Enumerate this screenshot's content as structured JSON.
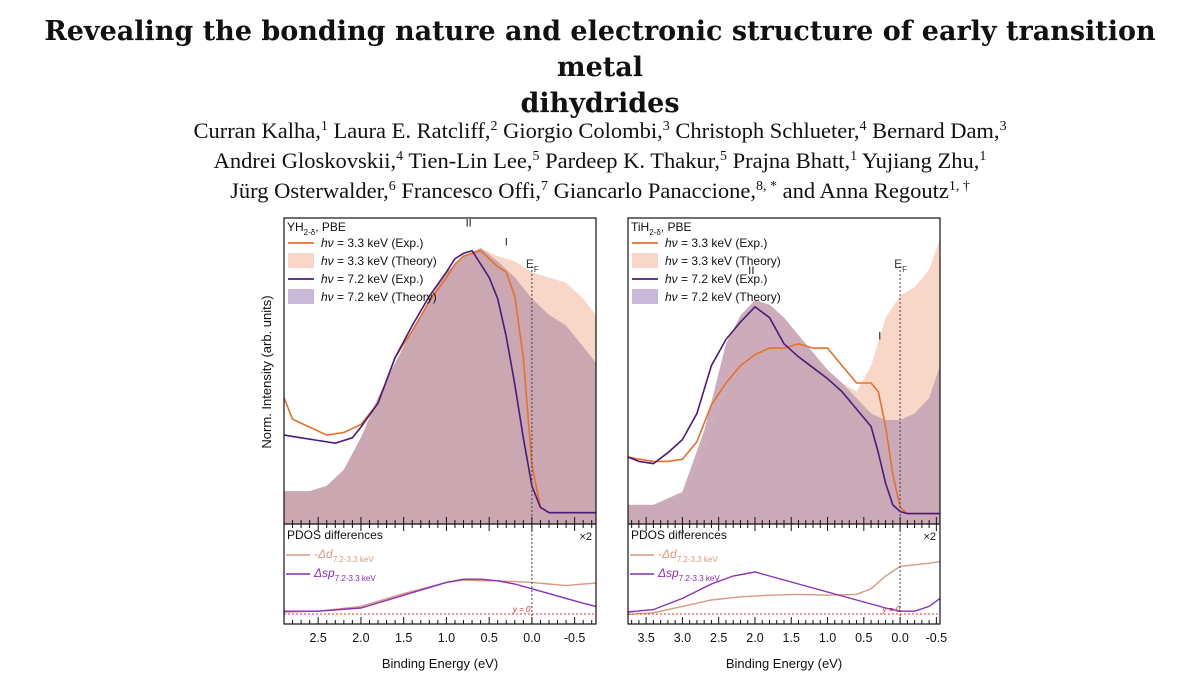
{
  "title": {
    "line1": "Revealing the bonding nature and electronic structure of early transition metal",
    "line2": "dihydrides"
  },
  "authors": [
    {
      "name": "Curran Kalha,",
      "aff": "1"
    },
    {
      "name": "Laura E. Ratcliff,",
      "aff": "2"
    },
    {
      "name": "Giorgio Colombi,",
      "aff": "3"
    },
    {
      "name": "Christoph Schlueter,",
      "aff": "4"
    },
    {
      "name": "Bernard Dam,",
      "aff": "3"
    },
    {
      "name": "Andrei Gloskovskii,",
      "aff": "4"
    },
    {
      "name": "Tien-Lin Lee,",
      "aff": "5"
    },
    {
      "name": "Pardeep K. Thakur,",
      "aff": "5"
    },
    {
      "name": "Prajna Bhatt,",
      "aff": "1"
    },
    {
      "name": "Yujiang Zhu,",
      "aff": "1"
    },
    {
      "name": "Jürg Osterwalder,",
      "aff": "6"
    },
    {
      "name": "Francesco Offi,",
      "aff": "7"
    },
    {
      "name": "Giancarlo Panaccione,",
      "aff": "8, *"
    },
    {
      "name": "and Anna Regoutz",
      "aff": "1, †"
    }
  ],
  "figure": {
    "ylabel": "Norm. Intensity (arb. units)",
    "xlabel": "Binding Energy (eV)",
    "ef_label": "E",
    "ef_sub": "F",
    "legend": [
      "hν = 3.3 keV (Exp.)",
      "hν = 3.3 keV (Theory)",
      "hν = 7.2 keV (Exp.)",
      "hν = 7.2 keV (Theory)"
    ],
    "pdos_title": "PDOS differences",
    "x2_label": "×2",
    "delta_d": "-Δd",
    "delta_sp": "Δsp",
    "delta_sub": "7.2-3.3 keV",
    "y0_label": "y = 0",
    "peak_I": "I",
    "peak_II": "II",
    "panels": [
      {
        "label": "YH",
        "sub": "2-δ",
        "suffix": ", PBE",
        "ticks": [
          "2.5",
          "2.0",
          "1.5",
          "1.0",
          "0.5",
          "0.0",
          "-0.5"
        ]
      },
      {
        "label": "TiH",
        "sub": "2-δ",
        "suffix": ", PBE",
        "ticks": [
          "3.5",
          "3.0",
          "2.5",
          "2.0",
          "1.5",
          "1.0",
          "0.5",
          "0.0",
          "-0.5"
        ]
      }
    ]
  },
  "colors": {
    "orange_exp": "#e8702a",
    "orange_theory": "#f8d6c8",
    "purple_exp": "#4b1b7a",
    "purple_theory": "#c9b8da",
    "overlap": "#c9a4ad",
    "d_line": "#d99a80",
    "sp_line": "#8a2fb8",
    "y0_line": "#e0352a"
  },
  "chart_data": [
    {
      "type": "line",
      "title": "YH2-δ, PBE",
      "xlabel": "Binding Energy (eV)",
      "ylabel": "Norm. Intensity (arb. units)",
      "xlim": [
        2.9,
        -0.75
      ],
      "ylim": [
        0,
        1.1
      ],
      "series": [
        {
          "name": "hν = 3.3 keV (Exp.)",
          "x": [
            2.9,
            2.8,
            2.6,
            2.4,
            2.2,
            2.0,
            1.8,
            1.6,
            1.4,
            1.2,
            1.0,
            0.9,
            0.8,
            0.7,
            0.6,
            0.5,
            0.4,
            0.3,
            0.2,
            0.1,
            0.0,
            -0.1,
            -0.2,
            -0.4,
            -0.6,
            -0.75
          ],
          "y": [
            0.45,
            0.37,
            0.34,
            0.31,
            0.32,
            0.35,
            0.43,
            0.6,
            0.7,
            0.81,
            0.9,
            0.95,
            0.98,
            0.99,
            1.0,
            0.97,
            0.94,
            0.92,
            0.83,
            0.6,
            0.2,
            0.04,
            0.02,
            0.02,
            0.02,
            0.02
          ]
        },
        {
          "name": "hν = 3.3 keV (Theory)",
          "x": [
            2.9,
            2.6,
            2.4,
            2.2,
            2.0,
            1.8,
            1.6,
            1.4,
            1.2,
            1.0,
            0.8,
            0.6,
            0.4,
            0.2,
            0.0,
            -0.2,
            -0.4,
            -0.6,
            -0.75
          ],
          "y": [
            0.1,
            0.1,
            0.12,
            0.18,
            0.3,
            0.45,
            0.58,
            0.7,
            0.82,
            0.92,
            0.98,
            1.01,
            0.98,
            0.96,
            0.92,
            0.9,
            0.88,
            0.82,
            0.76
          ]
        },
        {
          "name": "hν = 7.2 keV (Exp.)",
          "x": [
            2.9,
            2.7,
            2.5,
            2.3,
            2.1,
            2.0,
            1.8,
            1.6,
            1.4,
            1.2,
            1.0,
            0.9,
            0.8,
            0.7,
            0.6,
            0.5,
            0.4,
            0.3,
            0.2,
            0.1,
            0.0,
            -0.1,
            -0.2,
            -0.4,
            -0.6,
            -0.75
          ],
          "y": [
            0.31,
            0.3,
            0.29,
            0.28,
            0.3,
            0.34,
            0.43,
            0.6,
            0.72,
            0.83,
            0.92,
            0.97,
            0.99,
            1.0,
            0.95,
            0.9,
            0.82,
            0.68,
            0.5,
            0.3,
            0.12,
            0.04,
            0.02,
            0.02,
            0.02,
            0.02
          ]
        },
        {
          "name": "hν = 7.2 keV (Theory)",
          "x": [
            2.9,
            2.6,
            2.4,
            2.2,
            2.0,
            1.8,
            1.6,
            1.4,
            1.2,
            1.0,
            0.8,
            0.6,
            0.4,
            0.2,
            0.0,
            -0.2,
            -0.4,
            -0.6,
            -0.75
          ],
          "y": [
            0.1,
            0.1,
            0.12,
            0.18,
            0.3,
            0.45,
            0.58,
            0.7,
            0.82,
            0.92,
            0.98,
            1.01,
            0.96,
            0.9,
            0.82,
            0.76,
            0.72,
            0.64,
            0.58
          ]
        },
        {
          "name": "-Δd 7.2-3.3 keV",
          "panel": "pdos",
          "x": [
            2.9,
            2.5,
            2.0,
            1.5,
            1.0,
            0.8,
            0.6,
            0.4,
            0.2,
            0.0,
            -0.2,
            -0.4,
            -0.6,
            -0.75
          ],
          "y": [
            0.05,
            0.06,
            0.12,
            0.28,
            0.42,
            0.45,
            0.44,
            0.44,
            0.43,
            0.42,
            0.4,
            0.38,
            0.4,
            0.41
          ]
        },
        {
          "name": "Δsp 7.2-3.3 keV",
          "panel": "pdos",
          "x": [
            2.9,
            2.5,
            2.0,
            1.5,
            1.0,
            0.8,
            0.6,
            0.4,
            0.2,
            0.0,
            -0.2,
            -0.4,
            -0.6,
            -0.75
          ],
          "y": [
            0.06,
            0.06,
            0.1,
            0.26,
            0.42,
            0.46,
            0.46,
            0.44,
            0.4,
            0.34,
            0.28,
            0.22,
            0.16,
            0.12
          ]
        }
      ]
    },
    {
      "type": "line",
      "title": "TiH2-δ, PBE",
      "xlabel": "Binding Energy (eV)",
      "ylabel": "Norm. Intensity (arb. units)",
      "xlim": [
        3.75,
        -0.55
      ],
      "ylim": [
        0,
        1.35
      ],
      "series": [
        {
          "name": "hν = 3.3 keV (Exp.)",
          "x": [
            3.75,
            3.6,
            3.4,
            3.2,
            3.0,
            2.8,
            2.6,
            2.4,
            2.2,
            2.0,
            1.8,
            1.6,
            1.4,
            1.2,
            1.0,
            0.8,
            0.6,
            0.4,
            0.3,
            0.2,
            0.1,
            0.0,
            -0.1,
            -0.2,
            -0.4,
            -0.55
          ],
          "y": [
            0.28,
            0.27,
            0.26,
            0.26,
            0.27,
            0.35,
            0.52,
            0.62,
            0.7,
            0.75,
            0.78,
            0.78,
            0.8,
            0.78,
            0.78,
            0.7,
            0.62,
            0.62,
            0.58,
            0.42,
            0.2,
            0.05,
            0.02,
            0.02,
            0.02,
            0.02
          ]
        },
        {
          "name": "hν = 3.3 keV (Theory)",
          "x": [
            3.75,
            3.4,
            3.0,
            2.7,
            2.4,
            2.2,
            2.0,
            1.8,
            1.6,
            1.4,
            1.2,
            1.0,
            0.8,
            0.6,
            0.4,
            0.2,
            0.0,
            -0.2,
            -0.4,
            -0.55
          ],
          "y": [
            0.06,
            0.06,
            0.1,
            0.3,
            0.58,
            0.7,
            0.76,
            0.78,
            0.78,
            0.76,
            0.72,
            0.67,
            0.62,
            0.58,
            0.7,
            0.92,
            1.02,
            1.06,
            1.14,
            1.28
          ]
        },
        {
          "name": "hν = 7.2 keV (Exp.)",
          "x": [
            3.75,
            3.6,
            3.4,
            3.2,
            3.0,
            2.8,
            2.6,
            2.4,
            2.2,
            2.0,
            1.8,
            1.6,
            1.4,
            1.2,
            1.0,
            0.8,
            0.6,
            0.4,
            0.3,
            0.2,
            0.1,
            0.0,
            -0.1,
            -0.2,
            -0.4,
            -0.55
          ],
          "y": [
            0.28,
            0.26,
            0.25,
            0.3,
            0.36,
            0.48,
            0.7,
            0.82,
            0.9,
            0.97,
            0.92,
            0.8,
            0.74,
            0.69,
            0.64,
            0.58,
            0.5,
            0.42,
            0.3,
            0.16,
            0.06,
            0.03,
            0.02,
            0.02,
            0.02,
            0.02
          ]
        },
        {
          "name": "hν = 7.2 keV (Theory)",
          "x": [
            3.75,
            3.4,
            3.0,
            2.7,
            2.4,
            2.2,
            2.0,
            1.8,
            1.6,
            1.4,
            1.2,
            1.0,
            0.8,
            0.6,
            0.4,
            0.2,
            0.0,
            -0.2,
            -0.4,
            -0.55
          ],
          "y": [
            0.06,
            0.06,
            0.12,
            0.4,
            0.8,
            0.93,
            1.0,
            0.98,
            0.92,
            0.84,
            0.76,
            0.68,
            0.62,
            0.55,
            0.48,
            0.45,
            0.45,
            0.48,
            0.55,
            0.7
          ]
        },
        {
          "name": "-Δd 7.2-3.3 keV",
          "panel": "pdos",
          "x": [
            3.75,
            3.4,
            3.0,
            2.6,
            2.2,
            1.8,
            1.4,
            1.0,
            0.6,
            0.4,
            0.2,
            0.0,
            -0.2,
            -0.4,
            -0.55
          ],
          "y": [
            0.02,
            0.04,
            0.12,
            0.2,
            0.24,
            0.26,
            0.27,
            0.26,
            0.27,
            0.34,
            0.5,
            0.62,
            0.64,
            0.66,
            0.68
          ]
        },
        {
          "name": "Δsp 7.2-3.3 keV",
          "panel": "pdos",
          "x": [
            3.75,
            3.4,
            3.0,
            2.6,
            2.3,
            2.0,
            1.8,
            1.4,
            1.0,
            0.6,
            0.2,
            0.0,
            -0.2,
            -0.4,
            -0.55
          ],
          "y": [
            0.05,
            0.08,
            0.22,
            0.4,
            0.5,
            0.55,
            0.5,
            0.4,
            0.3,
            0.2,
            0.1,
            0.06,
            0.06,
            0.12,
            0.22
          ]
        }
      ]
    }
  ]
}
